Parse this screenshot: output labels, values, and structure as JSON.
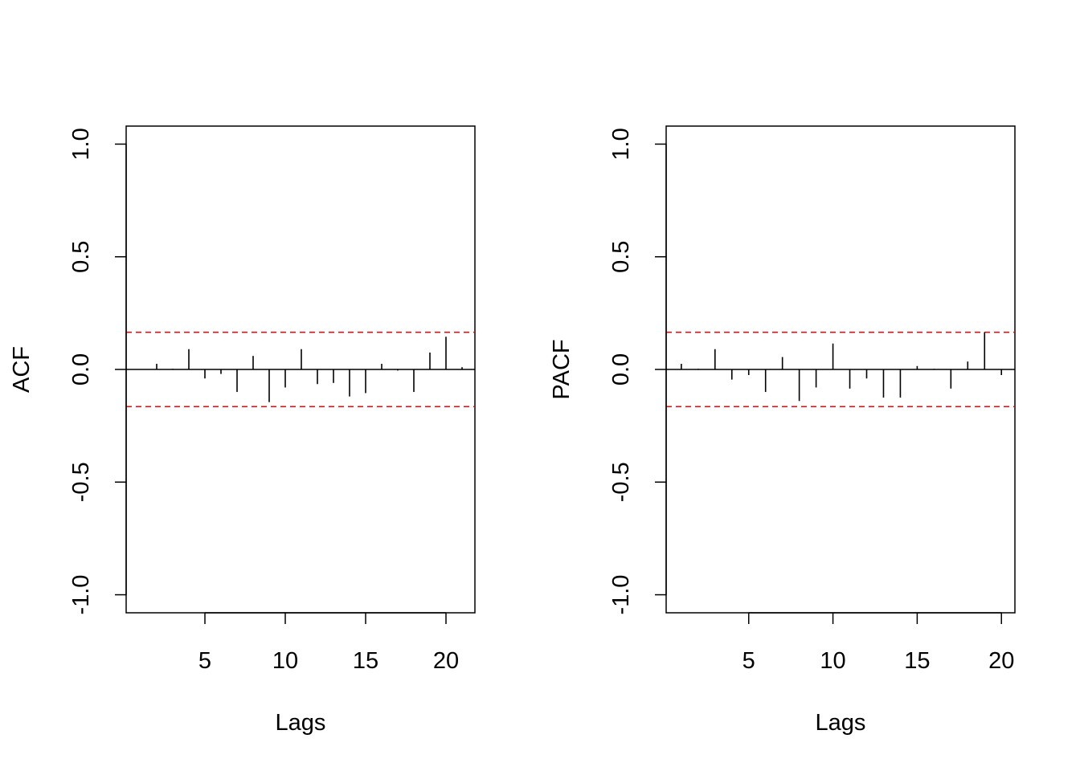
{
  "colors": {
    "bar": "#000000",
    "ci": "#ff0000",
    "axis": "#000000"
  },
  "chart_data": [
    {
      "type": "bar",
      "panel": "left",
      "xlabel": "Lags",
      "ylabel": "ACF",
      "xlim": [
        0.1,
        21.8
      ],
      "ylim": [
        -1.08,
        1.08
      ],
      "xticks": [
        5,
        10,
        15,
        20
      ],
      "xtick_labels": [
        "5",
        "10",
        "15",
        "20"
      ],
      "yticks": [
        -1.0,
        -0.5,
        0.0,
        0.5,
        1.0
      ],
      "ytick_labels": [
        "-1.0",
        "-0.5",
        "0.0",
        "0.5",
        "1.0"
      ],
      "ci": [
        0.165,
        -0.165
      ],
      "lags": [
        1,
        2,
        3,
        4,
        5,
        6,
        7,
        8,
        9,
        10,
        11,
        12,
        13,
        14,
        15,
        16,
        17,
        18,
        19,
        20,
        21
      ],
      "values": [
        0.0,
        0.025,
        0.003,
        0.09,
        -0.04,
        -0.02,
        -0.1,
        0.06,
        -0.145,
        -0.08,
        0.09,
        -0.065,
        -0.06,
        -0.12,
        -0.105,
        0.025,
        -0.005,
        -0.1,
        0.075,
        0.145,
        0.01
      ],
      "grid": false,
      "legend": "none"
    },
    {
      "type": "bar",
      "panel": "right",
      "xlabel": "Lags",
      "ylabel": "PACF",
      "xlim": [
        0.1,
        20.8
      ],
      "ylim": [
        -1.08,
        1.08
      ],
      "xticks": [
        5,
        10,
        15,
        20
      ],
      "xtick_labels": [
        "5",
        "10",
        "15",
        "20"
      ],
      "yticks": [
        -1.0,
        -0.5,
        0.0,
        0.5,
        1.0
      ],
      "ytick_labels": [
        "-1.0",
        "-0.5",
        "0.0",
        "0.5",
        "1.0"
      ],
      "ci": [
        0.165,
        -0.165
      ],
      "lags": [
        1,
        2,
        3,
        4,
        5,
        6,
        7,
        8,
        9,
        10,
        11,
        12,
        13,
        14,
        15,
        16,
        17,
        18,
        19,
        20
      ],
      "values": [
        0.025,
        0.003,
        0.09,
        -0.045,
        -0.025,
        -0.1,
        0.055,
        -0.14,
        -0.08,
        0.115,
        -0.085,
        -0.04,
        -0.125,
        -0.125,
        0.015,
        0.003,
        -0.085,
        0.035,
        0.165,
        -0.025
      ],
      "grid": false,
      "legend": "none"
    }
  ]
}
